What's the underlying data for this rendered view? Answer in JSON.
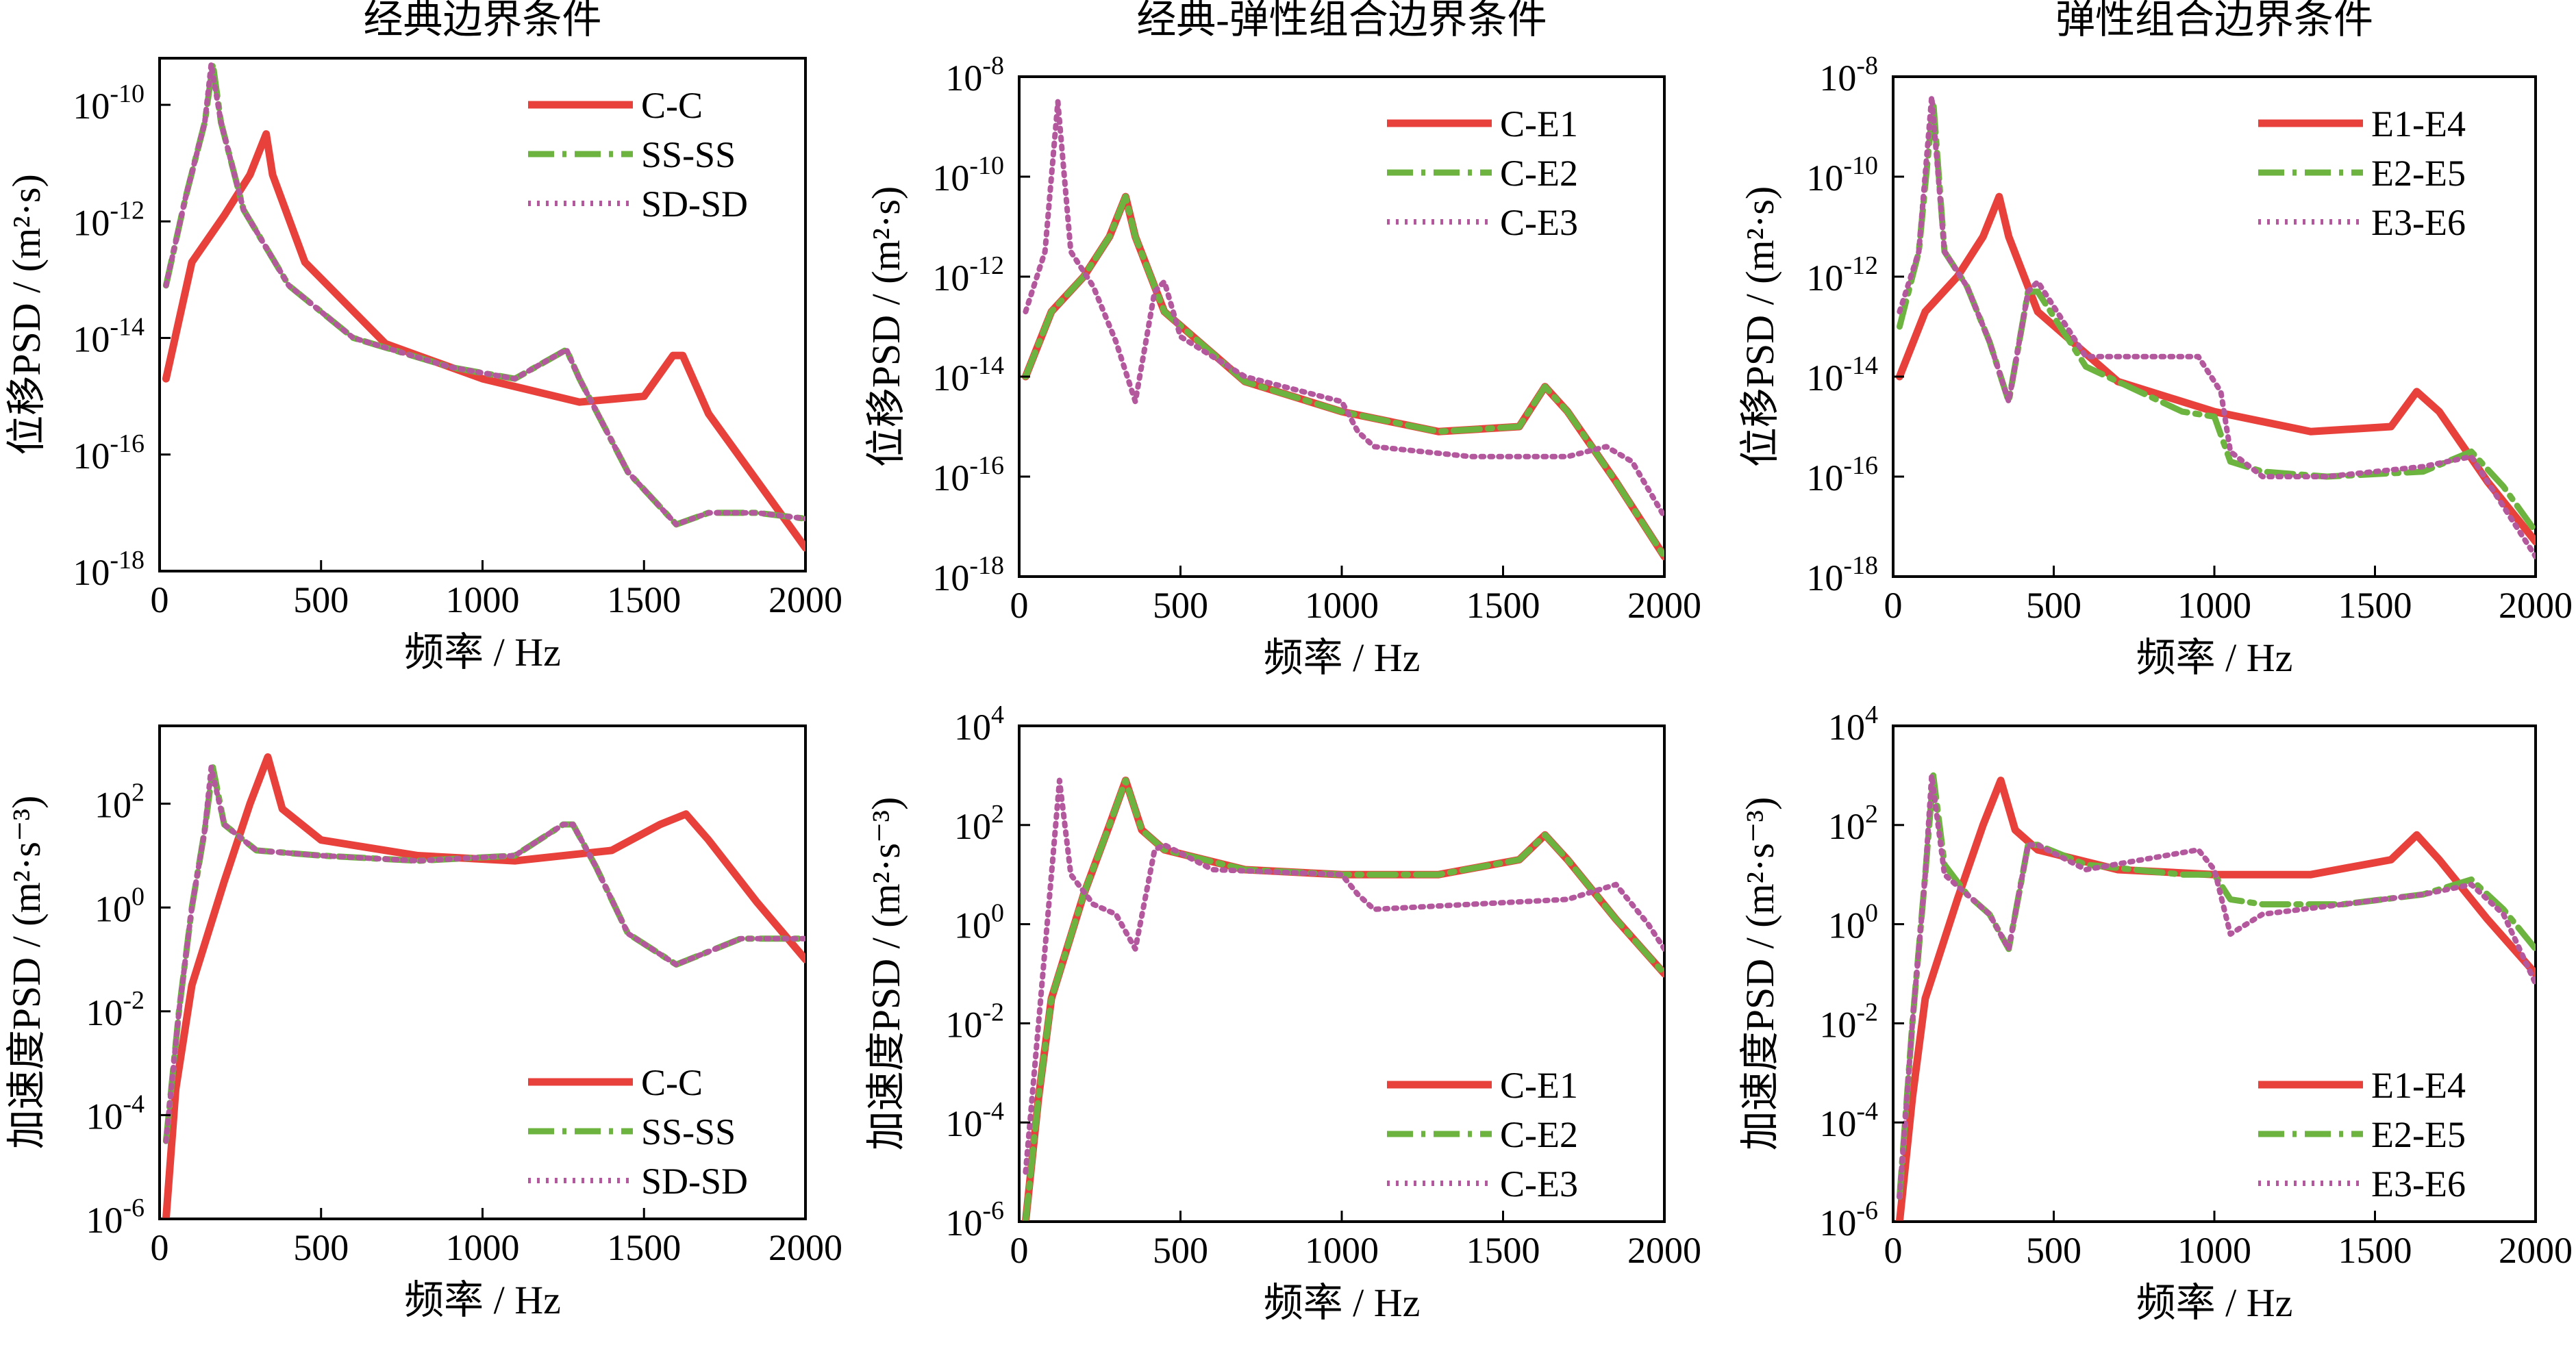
{
  "colors": {
    "series1": "#e8413c",
    "series2": "#6cb43f",
    "series3": "#b4589e",
    "axis": "#000000"
  },
  "chart_data": [
    {
      "type": "line",
      "title": "经典边界条件",
      "xlabel": "频率 / Hz",
      "ylabel": "位移PSD / (m²·s)",
      "xlim": [
        0,
        2000
      ],
      "ylim_log10": [
        -18,
        -9.2
      ],
      "xticks": [
        0,
        500,
        1000,
        1500,
        2000
      ],
      "yticks_log10": [
        -18,
        -16,
        -14,
        -12,
        -10
      ],
      "legend_position": "top-right",
      "series": [
        {
          "name": "C-C",
          "x": [
            20,
            100,
            200,
            280,
            330,
            350,
            450,
            700,
            1000,
            1300,
            1500,
            1590,
            1620,
            1700,
            2000
          ],
          "log10_y": [
            -14.7,
            -12.7,
            -11.9,
            -11.2,
            -10.5,
            -11.2,
            -12.7,
            -14.1,
            -14.7,
            -15.1,
            -15,
            -14.3,
            -14.3,
            -15.3,
            -17.6
          ]
        },
        {
          "name": "SS-SS",
          "x": [
            20,
            80,
            140,
            165,
            190,
            260,
            400,
            600,
            900,
            1100,
            1260,
            1300,
            1450,
            1600,
            1700,
            1850,
            2000
          ],
          "log10_y": [
            -13.1,
            -11.6,
            -10.3,
            -9.3,
            -10.3,
            -11.8,
            -13.1,
            -14,
            -14.5,
            -14.7,
            -14.2,
            -14.7,
            -16.3,
            -17.2,
            -17,
            -17,
            -17.1
          ]
        },
        {
          "name": "SD-SD",
          "x": [
            20,
            80,
            140,
            160,
            190,
            260,
            400,
            600,
            900,
            1100,
            1260,
            1300,
            1450,
            1600,
            1700,
            1850,
            2000
          ],
          "log10_y": [
            -13.1,
            -11.6,
            -10.3,
            -9.3,
            -10.3,
            -11.8,
            -13.1,
            -14,
            -14.5,
            -14.7,
            -14.2,
            -14.7,
            -16.3,
            -17.2,
            -17,
            -17,
            -17.1
          ]
        }
      ]
    },
    {
      "type": "line",
      "title": "经典-弹性组合边界条件",
      "xlabel": "频率 / Hz",
      "ylabel": "位移PSD / (m²·s)",
      "xlim": [
        0,
        2000
      ],
      "ylim_log10": [
        -18,
        -8
      ],
      "xticks": [
        0,
        500,
        1000,
        1500,
        2000
      ],
      "yticks_log10": [
        -18,
        -16,
        -14,
        -12,
        -10,
        -8
      ],
      "legend_position": "top-right",
      "series": [
        {
          "name": "C-E1",
          "x": [
            20,
            100,
            200,
            280,
            330,
            360,
            450,
            700,
            1000,
            1300,
            1550,
            1630,
            1700,
            1850,
            2000
          ],
          "log10_y": [
            -14,
            -12.7,
            -12,
            -11.2,
            -10.4,
            -11.2,
            -12.7,
            -14.1,
            -14.7,
            -15.1,
            -15,
            -14.2,
            -14.7,
            -16.1,
            -17.6
          ]
        },
        {
          "name": "C-E2",
          "x": [
            20,
            100,
            200,
            280,
            330,
            360,
            450,
            700,
            1000,
            1300,
            1550,
            1630,
            1700,
            1850,
            2000
          ],
          "log10_y": [
            -14,
            -12.7,
            -12,
            -11.2,
            -10.4,
            -11.2,
            -12.7,
            -14.1,
            -14.7,
            -15.1,
            -15,
            -14.2,
            -14.7,
            -16.1,
            -17.6
          ]
        },
        {
          "name": "C-E3",
          "x": [
            20,
            80,
            120,
            160,
            230,
            300,
            360,
            420,
            450,
            500,
            700,
            1000,
            1050,
            1100,
            1400,
            1700,
            1820,
            1900,
            2000
          ],
          "log10_y": [
            -12.7,
            -11.5,
            -8.5,
            -11.5,
            -12.2,
            -13.3,
            -14.5,
            -12.3,
            -12.1,
            -13.2,
            -14,
            -14.5,
            -15.1,
            -15.4,
            -15.6,
            -15.6,
            -15.4,
            -15.7,
            -16.8
          ]
        }
      ]
    },
    {
      "type": "line",
      "title": "弹性组合边界条件",
      "xlabel": "频率 / Hz",
      "ylabel": "位移PSD / (m²·s)",
      "xlim": [
        0,
        2000
      ],
      "ylim_log10": [
        -18,
        -8
      ],
      "xticks": [
        0,
        500,
        1000,
        1500,
        2000
      ],
      "yticks_log10": [
        -18,
        -16,
        -14,
        -12,
        -10,
        -8
      ],
      "legend_position": "top-right",
      "series": [
        {
          "name": "E1-E4",
          "x": [
            20,
            100,
            200,
            280,
            330,
            360,
            450,
            700,
            1000,
            1300,
            1550,
            1630,
            1700,
            1850,
            2000
          ],
          "log10_y": [
            -14,
            -12.7,
            -12,
            -11.2,
            -10.4,
            -11.2,
            -12.7,
            -14.1,
            -14.7,
            -15.1,
            -15,
            -14.3,
            -14.7,
            -16.1,
            -17.3
          ]
        },
        {
          "name": "E2-E5",
          "x": [
            20,
            80,
            125,
            160,
            230,
            300,
            360,
            420,
            450,
            600,
            900,
            1000,
            1050,
            1150,
            1350,
            1650,
            1800,
            1900,
            2000
          ],
          "log10_y": [
            -13,
            -11.5,
            -8.5,
            -11.5,
            -12.2,
            -13.3,
            -14.5,
            -12.3,
            -12.3,
            -13.8,
            -14.7,
            -14.8,
            -15.7,
            -15.9,
            -16,
            -15.9,
            -15.5,
            -16.2,
            -17.1
          ]
        },
        {
          "name": "E3-E6",
          "x": [
            20,
            80,
            120,
            160,
            230,
            300,
            360,
            420,
            450,
            600,
            950,
            1020,
            1050,
            1150,
            1350,
            1650,
            1800,
            1900,
            2000
          ],
          "log10_y": [
            -12.7,
            -11.5,
            -8.4,
            -11.5,
            -12.2,
            -13.3,
            -14.5,
            -12.3,
            -12.1,
            -13.6,
            -13.6,
            -14.3,
            -15.5,
            -16,
            -16,
            -15.8,
            -15.6,
            -16.6,
            -17.6
          ]
        }
      ]
    },
    {
      "type": "line",
      "title": "",
      "xlabel": "频率 / Hz",
      "ylabel": "加速度PSD / (m²·s⁻³)",
      "xlim": [
        0,
        2000
      ],
      "ylim_log10": [
        -6,
        3.5
      ],
      "xticks": [
        0,
        500,
        1000,
        1500,
        2000
      ],
      "yticks_log10": [
        -6,
        -4,
        -2,
        0,
        2
      ],
      "legend_position": "bottom-right",
      "series": [
        {
          "name": "C-C",
          "x": [
            20,
            50,
            100,
            200,
            280,
            335,
            380,
            500,
            800,
            1100,
            1400,
            1550,
            1630,
            1700,
            1850,
            2000
          ],
          "log10_y": [
            -6,
            -3.5,
            -1.5,
            0.5,
            2,
            2.9,
            1.9,
            1.3,
            1,
            0.9,
            1.1,
            1.6,
            1.8,
            1.3,
            0.1,
            -1
          ]
        },
        {
          "name": "SS-SS",
          "x": [
            20,
            60,
            100,
            140,
            165,
            200,
            300,
            500,
            800,
            1100,
            1250,
            1280,
            1350,
            1450,
            1600,
            1800,
            2000
          ],
          "log10_y": [
            -4.5,
            -2,
            0,
            1.5,
            2.7,
            1.6,
            1.1,
            1,
            0.9,
            1,
            1.6,
            1.6,
            0.8,
            -0.5,
            -1.1,
            -0.6,
            -0.6
          ]
        },
        {
          "name": "SD-SD",
          "x": [
            20,
            60,
            100,
            140,
            160,
            200,
            300,
            500,
            800,
            1100,
            1250,
            1280,
            1350,
            1450,
            1600,
            1800,
            2000
          ],
          "log10_y": [
            -4.5,
            -2,
            0,
            1.5,
            2.7,
            1.6,
            1.1,
            1,
            0.9,
            1,
            1.6,
            1.6,
            0.8,
            -0.5,
            -1.1,
            -0.6,
            -0.6
          ]
        }
      ]
    },
    {
      "type": "line",
      "title": "",
      "xlabel": "频率 / Hz",
      "ylabel": "加速度PSD / (m²·s⁻³)",
      "xlim": [
        0,
        2000
      ],
      "ylim_log10": [
        -6,
        4
      ],
      "xticks": [
        0,
        500,
        1000,
        1500,
        2000
      ],
      "yticks_log10": [
        -6,
        -4,
        -2,
        0,
        2,
        4
      ],
      "legend_position": "bottom-right",
      "series": [
        {
          "name": "C-E1",
          "x": [
            20,
            60,
            100,
            200,
            280,
            330,
            380,
            450,
            700,
            1000,
            1300,
            1550,
            1630,
            1700,
            1850,
            2000
          ],
          "log10_y": [
            -6,
            -3.5,
            -1.5,
            0.6,
            2,
            2.9,
            1.9,
            1.5,
            1.1,
            1,
            1,
            1.3,
            1.8,
            1.3,
            0.1,
            -1
          ]
        },
        {
          "name": "C-E2",
          "x": [
            20,
            60,
            100,
            200,
            280,
            330,
            380,
            450,
            700,
            1000,
            1300,
            1550,
            1630,
            1700,
            1850,
            2000
          ],
          "log10_y": [
            -6,
            -3.5,
            -1.5,
            0.6,
            2,
            2.9,
            1.9,
            1.5,
            1.1,
            1,
            1,
            1.3,
            1.8,
            1.3,
            0.1,
            -1
          ]
        },
        {
          "name": "C-E3",
          "x": [
            20,
            60,
            100,
            125,
            160,
            230,
            300,
            360,
            420,
            450,
            600,
            1000,
            1050,
            1100,
            1400,
            1700,
            1850,
            1950,
            2000
          ],
          "log10_y": [
            -5,
            -2,
            1,
            2.9,
            1,
            0.4,
            0.2,
            -0.5,
            1.5,
            1.6,
            1.1,
            1,
            0.6,
            0.3,
            0.4,
            0.5,
            0.8,
            0,
            -0.5
          ]
        }
      ]
    },
    {
      "type": "line",
      "title": "",
      "xlabel": "频率 / Hz",
      "ylabel": "加速度PSD / (m²·s⁻³)",
      "xlim": [
        0,
        2000
      ],
      "ylim_log10": [
        -6,
        4
      ],
      "xticks": [
        0,
        500,
        1000,
        1500,
        2000
      ],
      "yticks_log10": [
        -6,
        -4,
        -2,
        0,
        2,
        4
      ],
      "legend_position": "bottom-right",
      "series": [
        {
          "name": "E1-E4",
          "x": [
            20,
            60,
            100,
            200,
            280,
            335,
            380,
            450,
            700,
            1000,
            1300,
            1550,
            1630,
            1700,
            1850,
            2000
          ],
          "log10_y": [
            -6,
            -3.5,
            -1.5,
            0.5,
            2,
            2.9,
            1.9,
            1.5,
            1.1,
            1,
            1,
            1.3,
            1.8,
            1.3,
            0.1,
            -1
          ]
        },
        {
          "name": "E2-E5",
          "x": [
            20,
            60,
            100,
            125,
            160,
            230,
            300,
            360,
            420,
            450,
            600,
            900,
            1000,
            1050,
            1150,
            1400,
            1650,
            1800,
            1900,
            2000
          ],
          "log10_y": [
            -5.5,
            -2,
            1,
            3,
            1.2,
            0.6,
            0.2,
            -0.5,
            1.6,
            1.6,
            1.2,
            1,
            1,
            0.5,
            0.4,
            0.4,
            0.6,
            0.9,
            0.3,
            -0.5
          ]
        },
        {
          "name": "E3-E6",
          "x": [
            20,
            60,
            100,
            120,
            160,
            230,
            300,
            360,
            420,
            450,
            600,
            950,
            1000,
            1050,
            1150,
            1400,
            1650,
            1800,
            1900,
            2000
          ],
          "log10_y": [
            -5.5,
            -2,
            1,
            3,
            1,
            0.6,
            0.2,
            -0.5,
            1.6,
            1.6,
            1.1,
            1.5,
            1.1,
            -0.2,
            0.2,
            0.4,
            0.6,
            0.8,
            0.2,
            -1.2
          ]
        }
      ]
    }
  ]
}
